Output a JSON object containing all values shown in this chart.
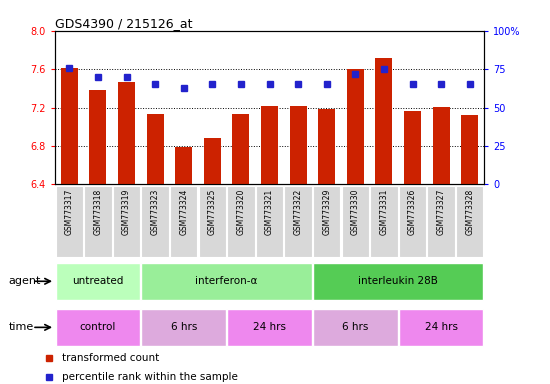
{
  "title": "GDS4390 / 215126_at",
  "samples": [
    "GSM773317",
    "GSM773318",
    "GSM773319",
    "GSM773323",
    "GSM773324",
    "GSM773325",
    "GSM773320",
    "GSM773321",
    "GSM773322",
    "GSM773329",
    "GSM773330",
    "GSM773331",
    "GSM773326",
    "GSM773327",
    "GSM773328"
  ],
  "red_values": [
    7.61,
    7.38,
    7.47,
    7.13,
    6.79,
    6.88,
    7.13,
    7.22,
    7.22,
    7.18,
    7.6,
    7.72,
    7.16,
    7.21,
    7.12
  ],
  "blue_values": [
    76,
    70,
    70,
    65,
    63,
    65,
    65,
    65,
    65,
    65,
    72,
    75,
    65,
    65,
    65
  ],
  "ylim_left": [
    6.4,
    8.0
  ],
  "ylim_right": [
    0,
    100
  ],
  "yticks_left": [
    6.4,
    6.8,
    7.2,
    7.6,
    8.0
  ],
  "yticks_right": [
    0,
    25,
    50,
    75,
    100
  ],
  "agent_groups": [
    {
      "label": "untreated",
      "start": 0,
      "end": 3,
      "color": "#bbffbb"
    },
    {
      "label": "interferon-α",
      "start": 3,
      "end": 9,
      "color": "#99ee99"
    },
    {
      "label": "interleukin 28B",
      "start": 9,
      "end": 15,
      "color": "#55cc55"
    }
  ],
  "time_groups": [
    {
      "label": "control",
      "start": 0,
      "end": 3,
      "color": "#ee88ee"
    },
    {
      "label": "6 hrs",
      "start": 3,
      "end": 6,
      "color": "#ddaadd"
    },
    {
      "label": "24 hrs",
      "start": 6,
      "end": 9,
      "color": "#ee88ee"
    },
    {
      "label": "6 hrs",
      "start": 9,
      "end": 12,
      "color": "#ddaadd"
    },
    {
      "label": "24 hrs",
      "start": 12,
      "end": 15,
      "color": "#ee88ee"
    }
  ],
  "bar_color": "#cc2200",
  "dot_color": "#2222cc",
  "grid_color": "#000000",
  "legend_items": [
    {
      "color": "#cc2200",
      "label": "transformed count"
    },
    {
      "color": "#2222cc",
      "label": "percentile rank within the sample"
    }
  ]
}
